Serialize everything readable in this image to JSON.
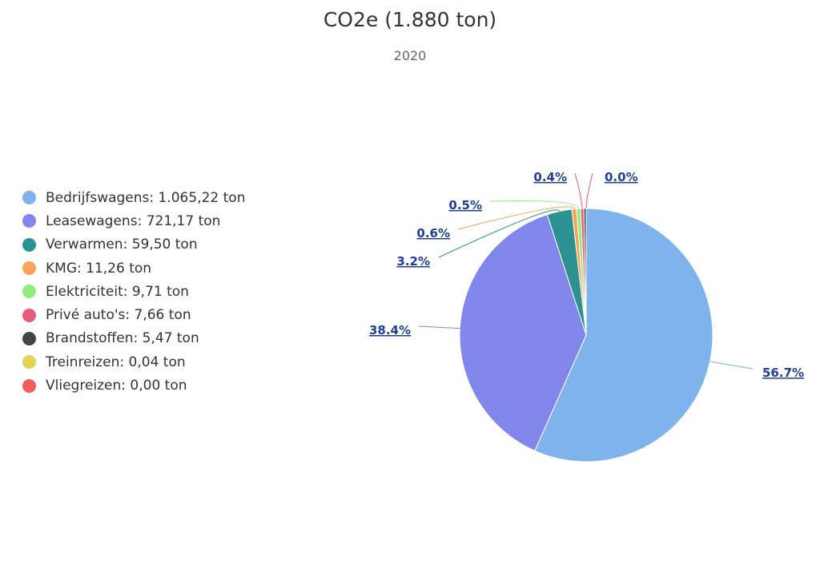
{
  "title": "CO2e (1.880 ton)",
  "subtitle": "2020",
  "legend": [
    {
      "label": "Bedrijfswagens: 1.065,22 ton",
      "color": "#7eb3ec"
    },
    {
      "label": "Leasewagens: 721,17 ton",
      "color": "#8186ea"
    },
    {
      "label": "Verwarmen: 59,50 ton",
      "color": "#2b9191"
    },
    {
      "label": "KMG: 11,26 ton",
      "color": "#f7a35c"
    },
    {
      "label": "Elektriciteit: 9,71 ton",
      "color": "#90ed7d"
    },
    {
      "label": "Privé auto's: 7,66 ton",
      "color": "#e75c7e"
    },
    {
      "label": "Brandstoffen: 5,47 ton",
      "color": "#434348"
    },
    {
      "label": "Treinreizen: 0,04 ton",
      "color": "#e4d354"
    },
    {
      "label": "Vliegreizen: 0,00 ton",
      "color": "#f15c5c"
    }
  ],
  "chart_data": {
    "type": "pie",
    "title": "CO2e (1.880 ton)",
    "subtitle": "2020",
    "legend_position": "left",
    "unit": "ton",
    "slices": [
      {
        "name": "Bedrijfswagens",
        "value": 1065.22,
        "label": "56.7%",
        "color": "#7eb3ec"
      },
      {
        "name": "Leasewagens",
        "value": 721.17,
        "label": "38.4%",
        "color": "#8186ea"
      },
      {
        "name": "Verwarmen",
        "value": 59.5,
        "label": "3.2%",
        "color": "#2b9191"
      },
      {
        "name": "KMG",
        "value": 11.26,
        "label": "0.6%",
        "color": "#f7a35c"
      },
      {
        "name": "Elektriciteit",
        "value": 9.71,
        "label": "0.5%",
        "color": "#90ed7d"
      },
      {
        "name": "Privé auto's",
        "value": 7.66,
        "label": "0.4%",
        "color": "#e75c7e"
      },
      {
        "name": "Brandstoffen",
        "value": 5.47,
        "label": "",
        "color": "#434348"
      },
      {
        "name": "Treinreizen",
        "value": 0.04,
        "label": "",
        "color": "#e4d354"
      },
      {
        "name": "Vliegreizen",
        "value": 0.0,
        "label": "0.0%",
        "color": "#f15c5c"
      }
    ]
  }
}
